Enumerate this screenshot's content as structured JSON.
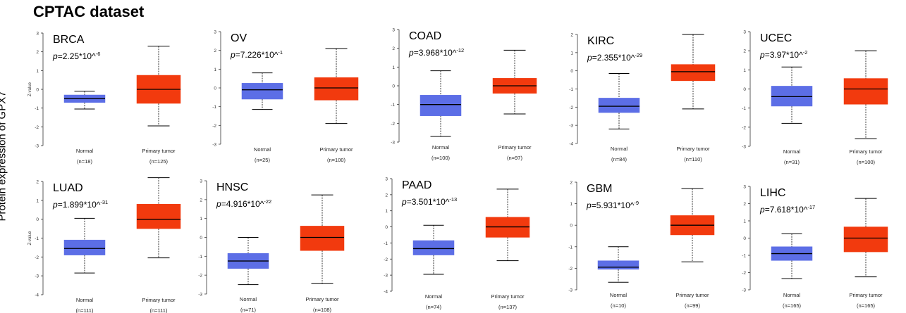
{
  "figure_title": "CPTAC dataset",
  "ylabel": "Protein expression of GPX7",
  "colors": {
    "normal": "#5c6ee6",
    "tumor": "#f23a0e",
    "axis": "#333333",
    "median": "#000000"
  },
  "chart_data": [
    {
      "type": "box",
      "title": "BRCA",
      "p_base": "2.25*10^",
      "p_exp": "-6",
      "ylabel": "Z-value",
      "ylim": [
        -3,
        3
      ],
      "categories": [
        "Normal",
        "Primary tumor"
      ],
      "n_labels": [
        "(n=18)",
        "(n=125)"
      ],
      "boxes": [
        {
          "min": -1.05,
          "q1": -0.7,
          "median": -0.5,
          "q3": -0.3,
          "max": -0.1
        },
        {
          "min": -1.95,
          "q1": -0.75,
          "median": 0.0,
          "q3": 0.75,
          "max": 2.3
        }
      ]
    },
    {
      "type": "box",
      "title": "OV",
      "p_base": "7.226*10^",
      "p_exp": "-1",
      "ylabel": "",
      "ylim": [
        -3,
        3
      ],
      "categories": [
        "Normal",
        "Primary tumor"
      ],
      "n_labels": [
        "(n=25)",
        "(n=100)"
      ],
      "boxes": [
        {
          "min": -1.15,
          "q1": -0.6,
          "median": -0.1,
          "q3": 0.25,
          "max": 0.8
        },
        {
          "min": -1.9,
          "q1": -0.65,
          "median": 0.0,
          "q3": 0.55,
          "max": 2.1
        }
      ]
    },
    {
      "type": "box",
      "title": "COAD",
      "p_base": "3.968*10^",
      "p_exp": "-12",
      "ylabel": "",
      "ylim": [
        -3,
        3
      ],
      "categories": [
        "Normal",
        "Primary tumor"
      ],
      "n_labels": [
        "(n=100)",
        "(n=97)"
      ],
      "boxes": [
        {
          "min": -2.7,
          "q1": -1.6,
          "median": -1.0,
          "q3": -0.5,
          "max": 0.8
        },
        {
          "min": -1.5,
          "q1": -0.4,
          "median": 0.0,
          "q3": 0.4,
          "max": 1.9
        }
      ]
    },
    {
      "type": "box",
      "title": "KIRC",
      "p_base": "2.355*10^",
      "p_exp": "-29",
      "ylabel": "",
      "ylim": [
        -4,
        2
      ],
      "categories": [
        "Normal",
        "Primary tumor"
      ],
      "n_labels": [
        "(n=84)",
        "(n=110)"
      ],
      "boxes": [
        {
          "min": -3.2,
          "q1": -2.3,
          "median": -1.95,
          "q3": -1.5,
          "max": -0.15
        },
        {
          "min": -2.1,
          "q1": -0.55,
          "median": -0.05,
          "q3": 0.35,
          "max": 2.0
        }
      ]
    },
    {
      "type": "box",
      "title": "UCEC",
      "p_base": "3.97*10^",
      "p_exp": "-2",
      "ylabel": "",
      "ylim": [
        -3,
        3
      ],
      "categories": [
        "Normal",
        "Primary tumor"
      ],
      "n_labels": [
        "(n=31)",
        "(n=100)"
      ],
      "boxes": [
        {
          "min": -1.8,
          "q1": -0.9,
          "median": -0.4,
          "q3": 0.15,
          "max": 1.15
        },
        {
          "min": -2.6,
          "q1": -0.8,
          "median": 0.0,
          "q3": 0.55,
          "max": 2.0
        }
      ]
    },
    {
      "type": "box",
      "title": "LUAD",
      "p_base": "1.899*10^",
      "p_exp": "-31",
      "ylabel": "Z-value",
      "ylim": [
        -4,
        2
      ],
      "categories": [
        "Normal",
        "Primary tumor"
      ],
      "n_labels": [
        "(n=111)",
        "(n=111)"
      ],
      "boxes": [
        {
          "min": -2.85,
          "q1": -1.9,
          "median": -1.55,
          "q3": -1.1,
          "max": 0.05
        },
        {
          "min": -2.05,
          "q1": -0.5,
          "median": 0.0,
          "q3": 0.8,
          "max": 2.2
        }
      ]
    },
    {
      "type": "box",
      "title": "HNSC",
      "p_base": "4.916*10^",
      "p_exp": "-22",
      "ylabel": "",
      "ylim": [
        -3,
        3
      ],
      "categories": [
        "Normal",
        "Primary tumor"
      ],
      "n_labels": [
        "(n=71)",
        "(n=108)"
      ],
      "boxes": [
        {
          "min": -2.5,
          "q1": -1.65,
          "median": -1.25,
          "q3": -0.85,
          "max": 0.0
        },
        {
          "min": -2.45,
          "q1": -0.7,
          "median": 0.0,
          "q3": 0.6,
          "max": 2.25
        }
      ]
    },
    {
      "type": "box",
      "title": "PAAD",
      "p_base": "3.501*10^",
      "p_exp": "-13",
      "ylabel": "",
      "ylim": [
        -4,
        3
      ],
      "categories": [
        "Normal",
        "Primary tumor"
      ],
      "n_labels": [
        "(n=74)",
        "(n=137)"
      ],
      "boxes": [
        {
          "min": -2.95,
          "q1": -1.75,
          "median": -1.35,
          "q3": -0.85,
          "max": 0.1
        },
        {
          "min": -2.1,
          "q1": -0.65,
          "median": 0.0,
          "q3": 0.6,
          "max": 2.35
        }
      ]
    },
    {
      "type": "box",
      "title": "GBM",
      "p_base": "5.931*10^",
      "p_exp": "-9",
      "ylabel": "",
      "ylim": [
        -3,
        2
      ],
      "categories": [
        "Normal",
        "Primary tumor"
      ],
      "n_labels": [
        "(n=10)",
        "(n=99)"
      ],
      "boxes": [
        {
          "min": -2.65,
          "q1": -2.05,
          "median": -1.95,
          "q3": -1.65,
          "max": -1.0
        },
        {
          "min": -1.7,
          "q1": -0.45,
          "median": 0.0,
          "q3": 0.45,
          "max": 1.7
        }
      ]
    },
    {
      "type": "box",
      "title": "LIHC",
      "p_base": "7.618*10^",
      "p_exp": "-17",
      "ylabel": "",
      "ylim": [
        -3,
        3
      ],
      "categories": [
        "Normal",
        "Primary tumor"
      ],
      "n_labels": [
        "(n=165)",
        "(n=165)"
      ],
      "boxes": [
        {
          "min": -2.35,
          "q1": -1.3,
          "median": -0.9,
          "q3": -0.5,
          "max": 0.25
        },
        {
          "min": -2.25,
          "q1": -0.8,
          "median": 0.0,
          "q3": 0.65,
          "max": 2.3
        }
      ]
    }
  ]
}
